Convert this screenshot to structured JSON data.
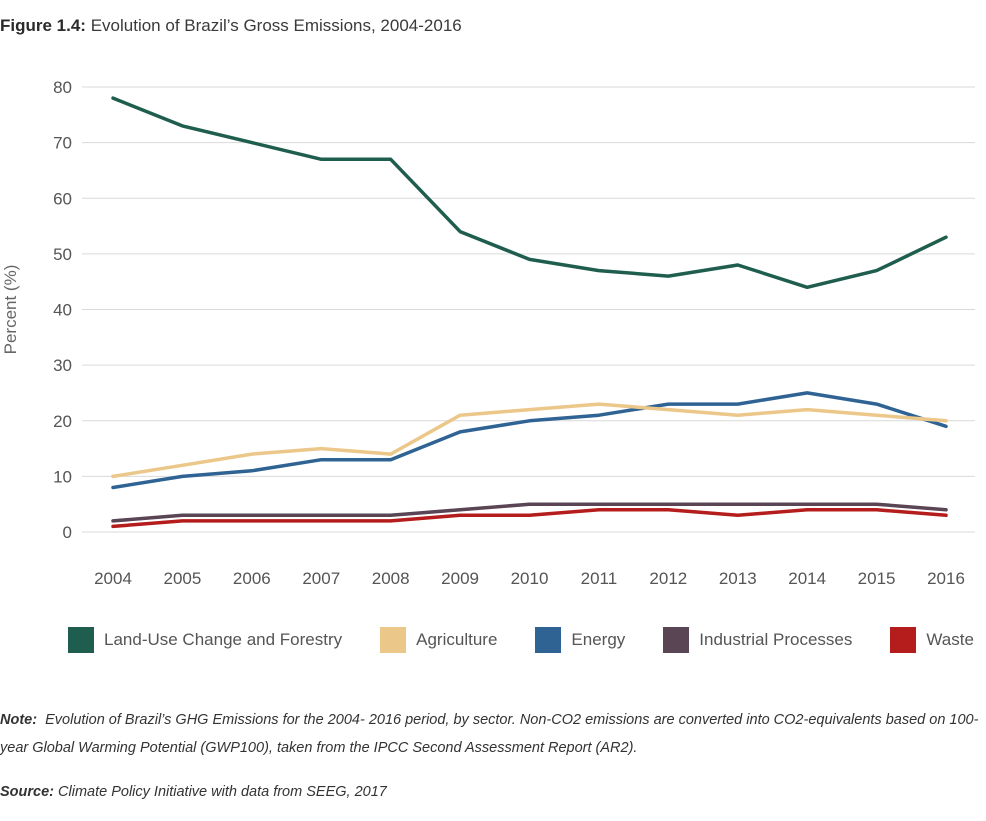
{
  "figure": {
    "label": "Figure 1.4:",
    "title": "Evolution of Brazil’s Gross Emissions, 2004-2016"
  },
  "chart_data": {
    "type": "line",
    "ylabel": "Percent (%)",
    "xlabel": "",
    "ylim": [
      0,
      80
    ],
    "yticks": [
      0,
      10,
      20,
      30,
      40,
      50,
      60,
      70,
      80
    ],
    "grid": true,
    "legend_position": "bottom",
    "x": [
      "2004",
      "2005",
      "2006",
      "2007",
      "2008",
      "2009",
      "2010",
      "2011",
      "2012",
      "2013",
      "2014",
      "2015",
      "2016"
    ],
    "series": [
      {
        "name": "Land-Use Change and Forestry",
        "color": "#1f5e4e",
        "values": [
          78,
          73,
          70,
          67,
          67,
          54,
          49,
          47,
          46,
          48,
          44,
          47,
          53
        ]
      },
      {
        "name": "Agriculture",
        "color": "#ebc78a",
        "values": [
          10,
          12,
          14,
          15,
          14,
          21,
          22,
          23,
          22,
          21,
          22,
          21,
          20
        ]
      },
      {
        "name": "Energy",
        "color": "#2f6393",
        "values": [
          8,
          10,
          11,
          13,
          13,
          18,
          20,
          21,
          23,
          23,
          25,
          23,
          19
        ]
      },
      {
        "name": "Industrial Processes",
        "color": "#5a4555",
        "values": [
          2,
          3,
          3,
          3,
          3,
          4,
          5,
          5,
          5,
          5,
          5,
          5,
          4
        ]
      },
      {
        "name": "Waste",
        "color": "#b51d1d",
        "values": [
          1,
          2,
          2,
          2,
          2,
          3,
          3,
          4,
          4,
          3,
          4,
          4,
          3
        ]
      }
    ]
  },
  "note": {
    "label": "Note:",
    "text": "Evolution of Brazil’s GHG Emissions for the 2004- 2016 period, by sector. Non-CO2 emissions are converted into CO2-equivalents based on 100-year Global Warming Potential (GWP100), taken from the IPCC Second Assessment Report (AR2)."
  },
  "source": {
    "label": "Source:",
    "text": "Climate Policy Initiative with data from SEEG, 2017"
  }
}
